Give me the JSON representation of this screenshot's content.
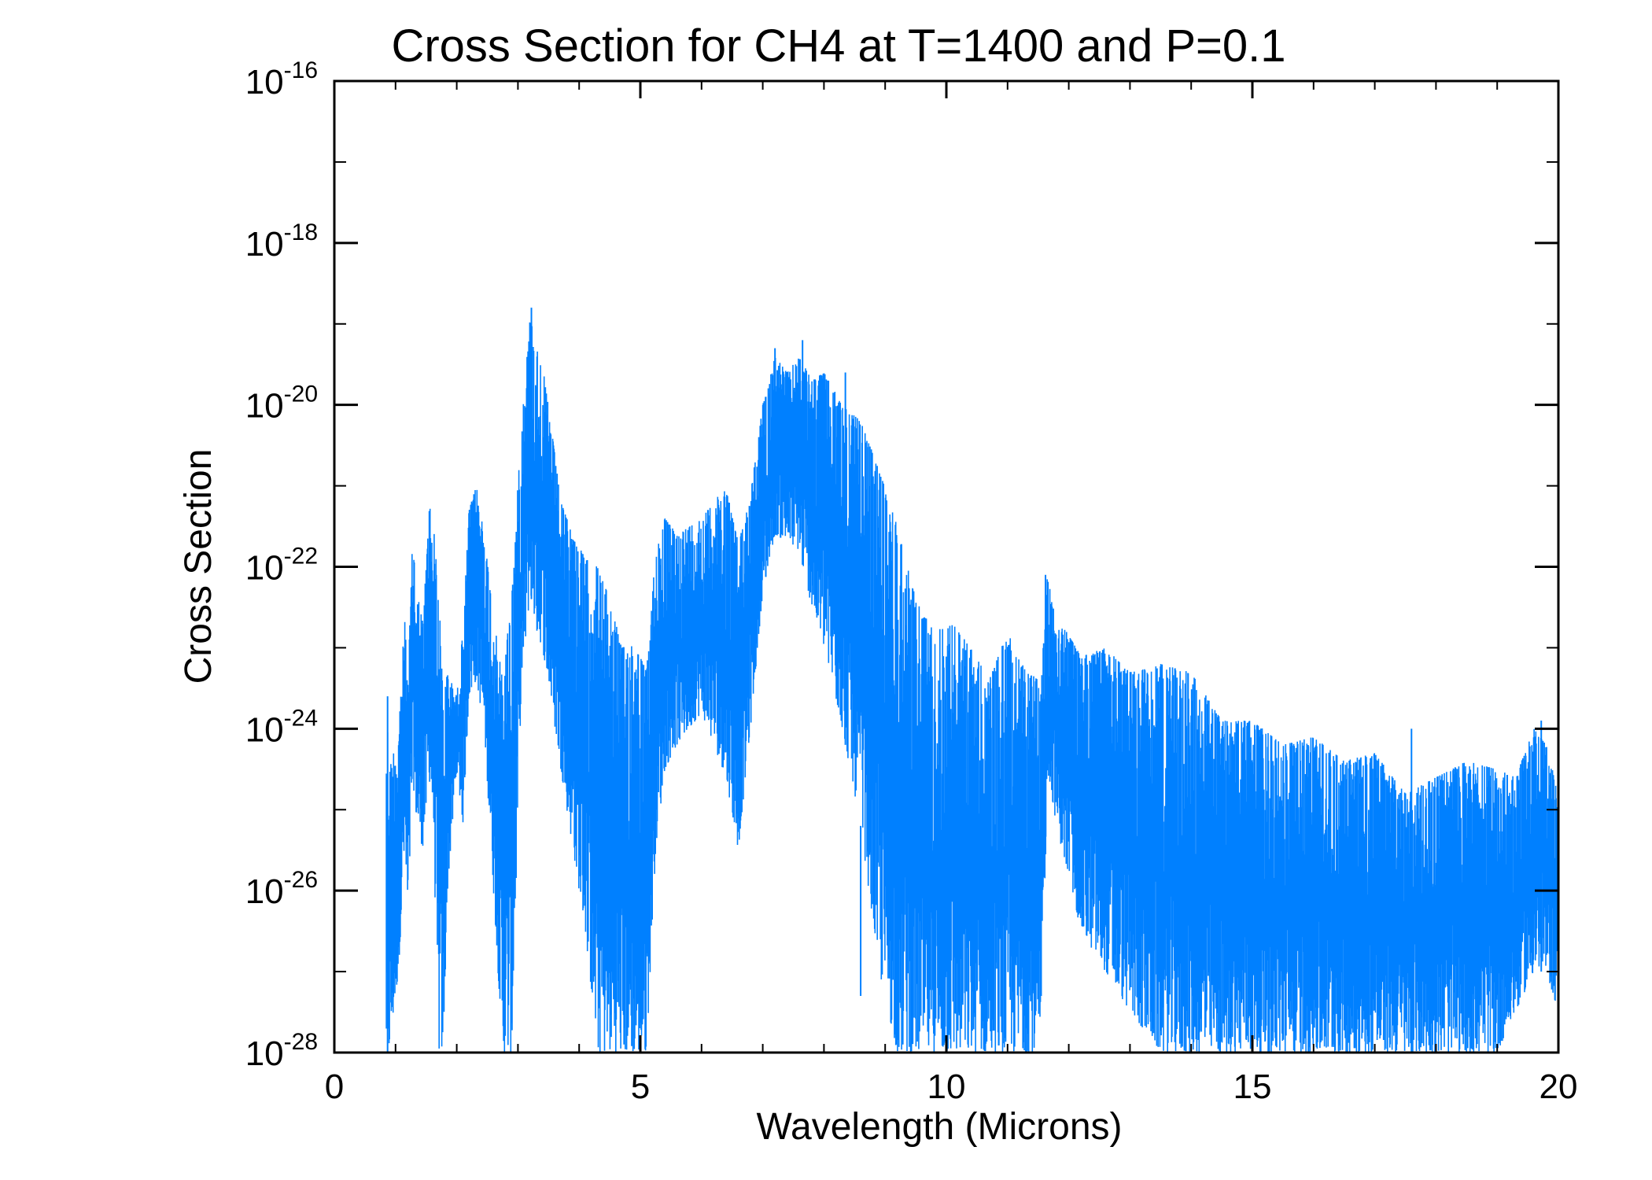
{
  "chart_data": {
    "type": "line",
    "title": "Cross Section for CH4 at T=1400 and P=0.1",
    "xlabel": "Wavelength (Microns)",
    "ylabel": "Cross Section",
    "xlim": [
      0,
      20
    ],
    "ylim_log10": [
      -28,
      -16
    ],
    "x_ticks": [
      {
        "value": 0,
        "label": "0"
      },
      {
        "value": 5,
        "label": "5"
      },
      {
        "value": 10,
        "label": "10"
      },
      {
        "value": 15,
        "label": "15"
      },
      {
        "value": 20,
        "label": "20"
      }
    ],
    "y_ticks": [
      {
        "exp": -16,
        "base": "10",
        "sup": "-16"
      },
      {
        "exp": -18,
        "base": "10",
        "sup": "-18"
      },
      {
        "exp": -20,
        "base": "10",
        "sup": "-20"
      },
      {
        "exp": -22,
        "base": "10",
        "sup": "-22"
      },
      {
        "exp": -24,
        "base": "10",
        "sup": "-24"
      },
      {
        "exp": -26,
        "base": "10",
        "sup": "-26"
      },
      {
        "exp": -28,
        "base": "10",
        "sup": "-28"
      }
    ],
    "grid": false,
    "series": [
      {
        "name": "CH4",
        "color": "#0080ff",
        "envelope_log10": {
          "x": [
            0.85,
            0.9,
            1.05,
            1.15,
            1.2,
            1.28,
            1.35,
            1.45,
            1.55,
            1.62,
            1.7,
            1.78,
            1.85,
            2.0,
            2.1,
            2.2,
            2.32,
            2.45,
            2.6,
            2.75,
            2.9,
            3.05,
            3.2,
            3.3,
            3.4,
            3.55,
            3.7,
            3.9,
            4.1,
            4.3,
            4.5,
            4.7,
            4.9,
            5.1,
            5.25,
            5.4,
            5.6,
            5.8,
            6.0,
            6.2,
            6.4,
            6.6,
            6.8,
            7.0,
            7.2,
            7.4,
            7.6,
            7.8,
            8.0,
            8.3,
            8.6,
            8.9,
            9.2,
            9.5,
            9.8,
            10.1,
            10.4,
            10.7,
            11.0,
            11.3,
            11.55,
            11.65,
            11.8,
            12.2,
            12.6,
            13.0,
            13.5,
            14.0,
            14.5,
            15.0,
            15.5,
            16.0,
            16.5,
            17.0,
            17.5,
            18.0,
            18.5,
            19.0,
            19.3,
            19.6,
            19.8,
            20.0
          ],
          "upper": [
            -23.6,
            -24.5,
            -24.0,
            -22.6,
            -23.5,
            -21.6,
            -22.3,
            -22.7,
            -21.2,
            -21.5,
            -22.2,
            -23.6,
            -23.3,
            -23.6,
            -22.8,
            -21.3,
            -21.0,
            -21.6,
            -22.6,
            -23.4,
            -22.3,
            -20.3,
            -18.9,
            -19.3,
            -19.5,
            -20.3,
            -21.2,
            -21.6,
            -21.9,
            -22.0,
            -22.4,
            -23.0,
            -22.9,
            -23.3,
            -21.8,
            -21.4,
            -21.6,
            -21.5,
            -21.4,
            -21.2,
            -21.0,
            -21.7,
            -21.1,
            -20.0,
            -19.4,
            -19.6,
            -19.4,
            -19.7,
            -19.6,
            -20.0,
            -20.2,
            -20.8,
            -21.5,
            -22.4,
            -22.8,
            -22.7,
            -23.0,
            -23.4,
            -22.8,
            -23.3,
            -23.4,
            -22.1,
            -22.6,
            -23.1,
            -23.0,
            -23.3,
            -23.2,
            -23.3,
            -23.9,
            -23.9,
            -24.2,
            -24.1,
            -24.4,
            -24.3,
            -24.8,
            -24.6,
            -24.4,
            -24.5,
            -24.6,
            -24.0,
            -24.2,
            -24.8
          ],
          "lower": [
            -28.0,
            -28.0,
            -27.0,
            -25.5,
            -26.5,
            -24.6,
            -25.2,
            -25.5,
            -24.6,
            -25.2,
            -28.0,
            -28.0,
            -26.0,
            -24.5,
            -25.2,
            -23.6,
            -23.4,
            -24.0,
            -26.0,
            -28.0,
            -28.0,
            -23.6,
            -22.3,
            -22.8,
            -23.0,
            -23.7,
            -24.5,
            -25.5,
            -26.5,
            -28.0,
            -28.0,
            -28.0,
            -28.0,
            -28.0,
            -25.5,
            -24.5,
            -24.2,
            -24.0,
            -23.8,
            -24.2,
            -24.6,
            -25.5,
            -24.0,
            -22.3,
            -21.6,
            -21.7,
            -21.8,
            -22.5,
            -23.0,
            -24.0,
            -25.2,
            -27.0,
            -28.0,
            -28.0,
            -28.0,
            -28.0,
            -28.0,
            -28.0,
            -28.0,
            -28.0,
            -28.0,
            -24.5,
            -25.2,
            -26.5,
            -27.0,
            -27.5,
            -28.0,
            -28.0,
            -28.0,
            -28.0,
            -28.0,
            -28.0,
            -28.0,
            -28.0,
            -28.0,
            -28.0,
            -28.0,
            -28.0,
            -27.5,
            -27.0,
            -27.0,
            -27.5
          ]
        },
        "spikes_log10": [
          {
            "x": 0.87,
            "y": -23.6
          },
          {
            "x": 3.22,
            "y": -18.8
          },
          {
            "x": 7.05,
            "y": -19.9
          },
          {
            "x": 7.2,
            "y": -19.3
          },
          {
            "x": 7.65,
            "y": -19.2
          },
          {
            "x": 8.35,
            "y": -19.6
          },
          {
            "x": 8.6,
            "y": -27.3
          },
          {
            "x": 11.62,
            "y": -22.1
          },
          {
            "x": 17.6,
            "y": -24.0
          },
          {
            "x": 19.72,
            "y": -23.9
          }
        ]
      }
    ]
  }
}
